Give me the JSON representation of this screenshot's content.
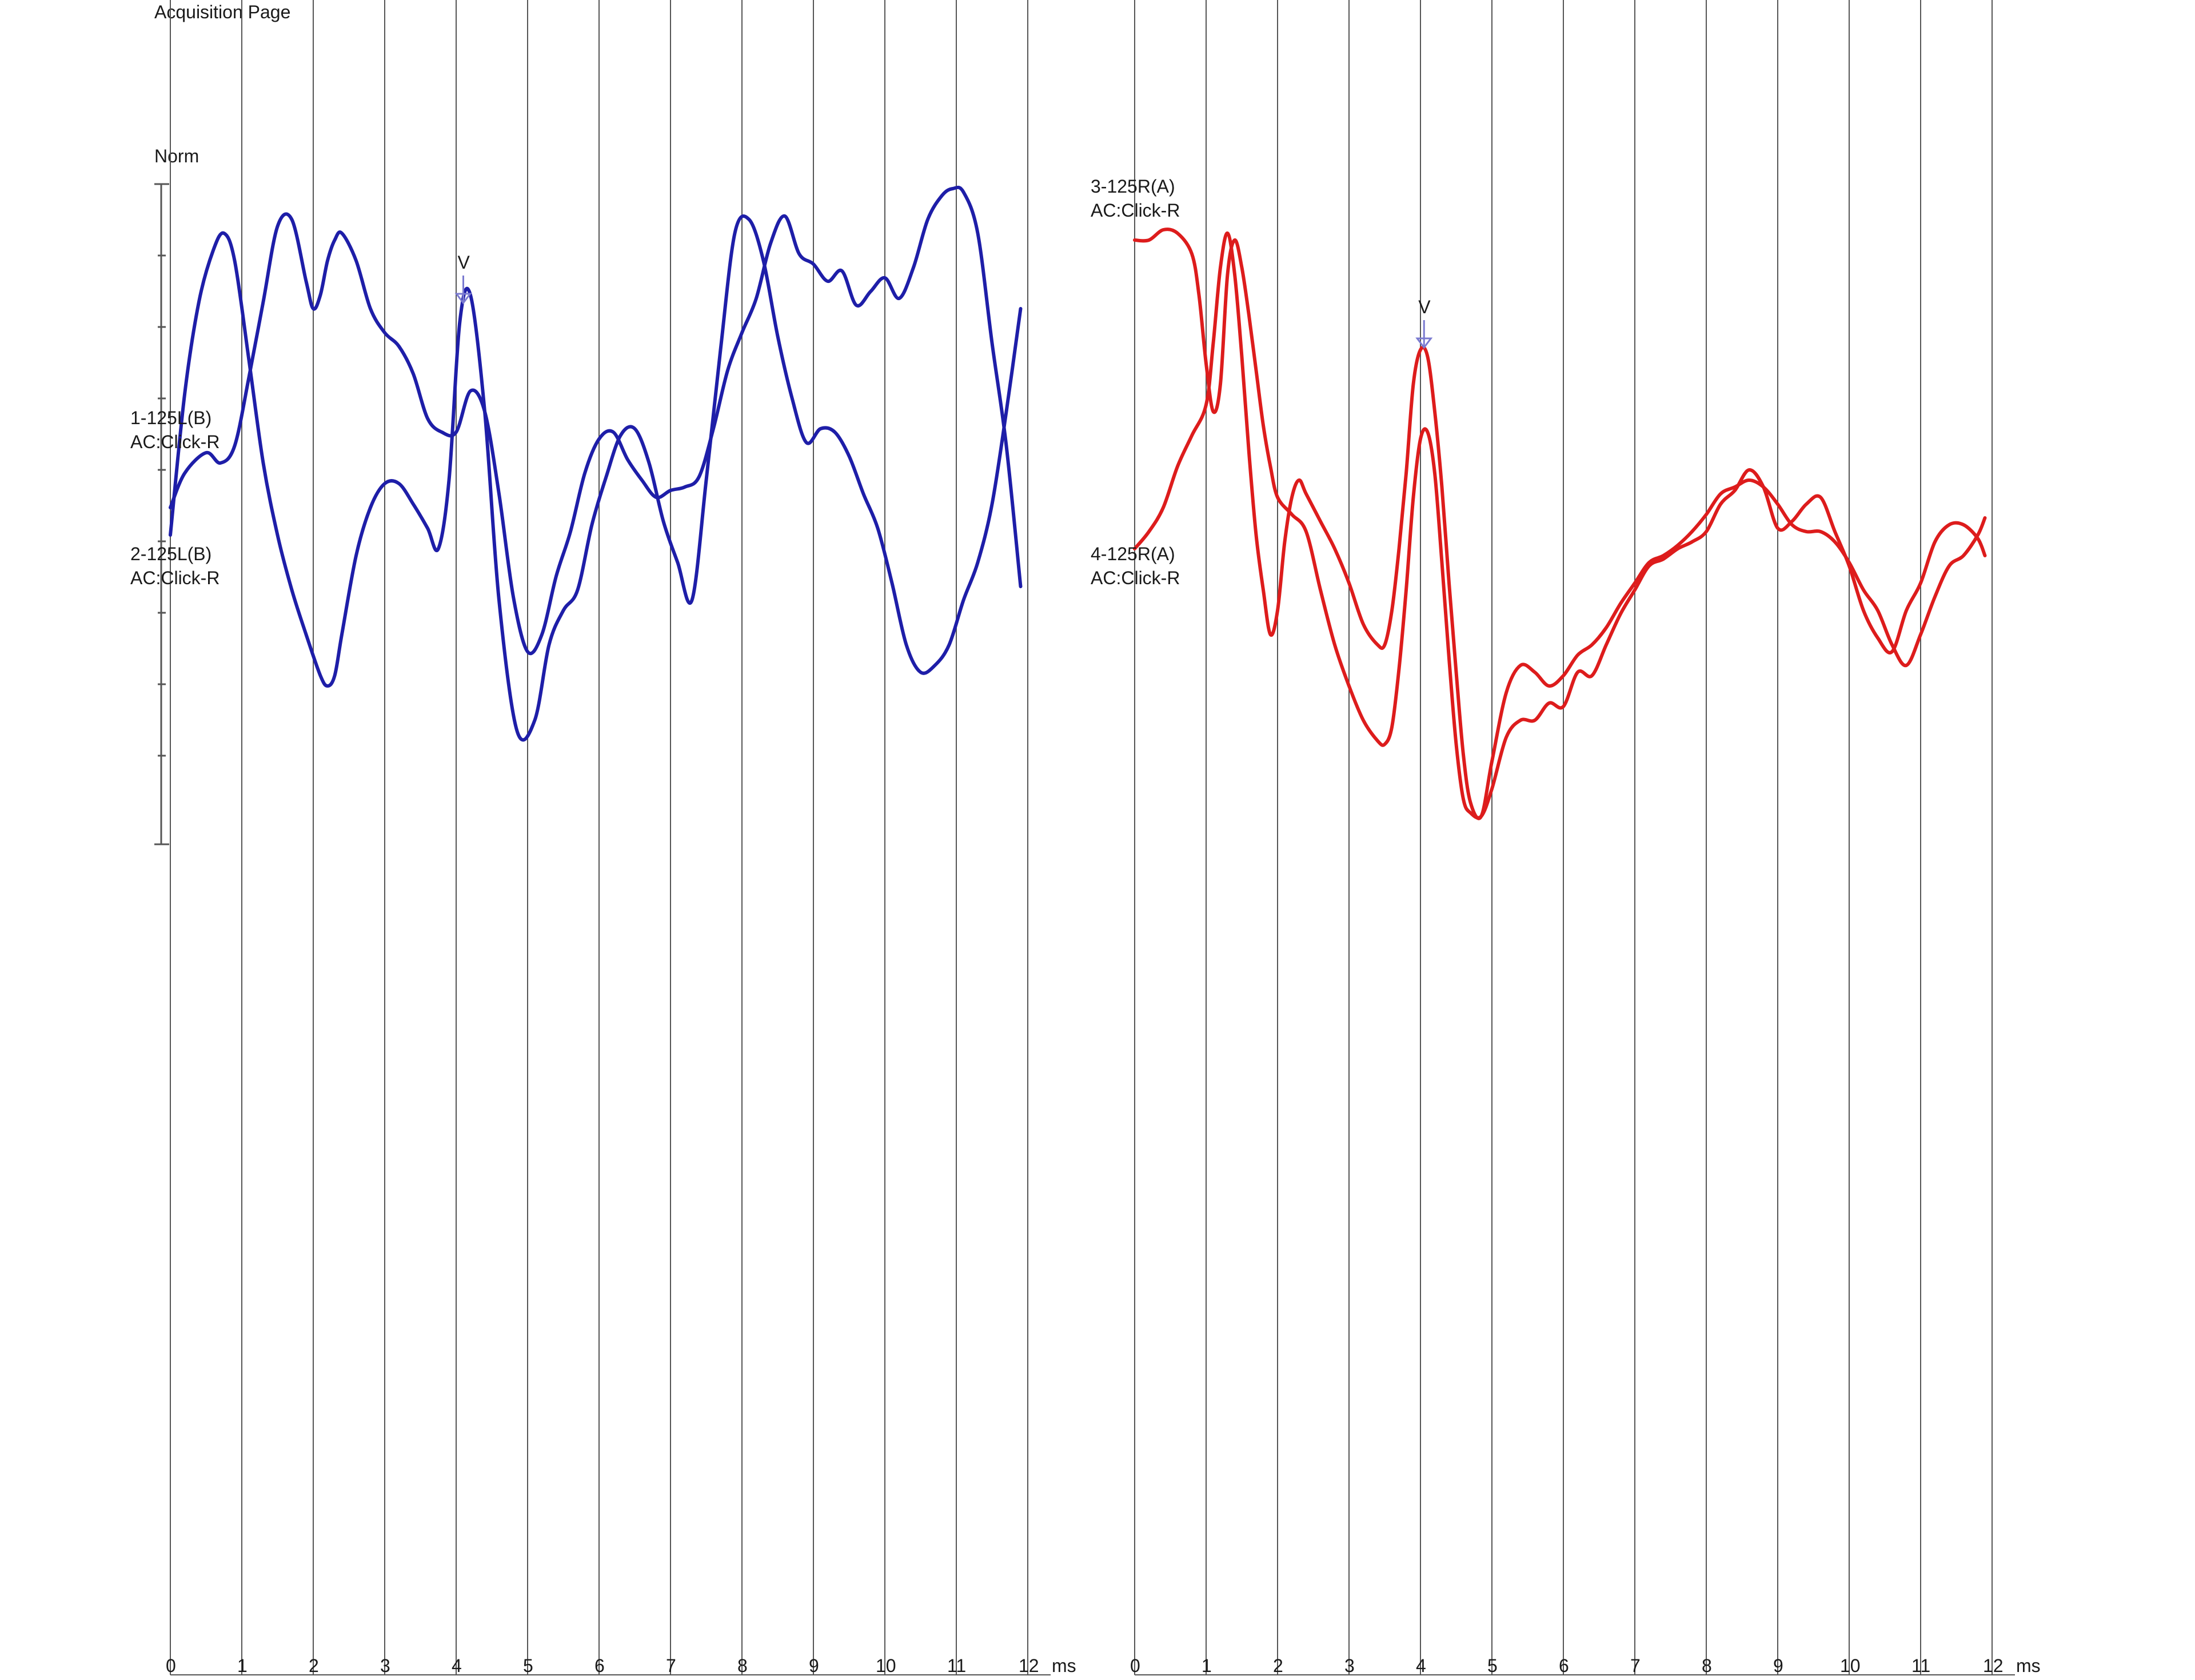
{
  "page": {
    "title": "Acquisition Page",
    "scale_label": "Norm",
    "axis_unit": "ms"
  },
  "colors": {
    "left_ear": "#1e1ea8",
    "right_ear": "#dd1c1c",
    "grid": "#555555",
    "text": "#1a1a1a"
  },
  "chart_data": [
    {
      "type": "line",
      "panel": "left",
      "x_ticks": [
        "0",
        "1",
        "2",
        "3",
        "4",
        "5",
        "6",
        "7",
        "8",
        "9",
        "10",
        "11",
        "12"
      ],
      "xlabel": "ms",
      "xlim": [
        0,
        12
      ],
      "ylim": [
        -1,
        1
      ],
      "grid": "vertical lines at every 1 ms",
      "labels": [
        {
          "line1": "1-125L(B)",
          "line2": "AC:Click-R"
        },
        {
          "line1": "2-125L(B)",
          "line2": "AC:Click-R"
        }
      ],
      "peak_markers": [
        {
          "label": "V",
          "x": 4.1,
          "y": 0.6
        }
      ],
      "series": [
        {
          "color": "#1e1ea8",
          "x": [
            0.0,
            0.2,
            0.4,
            0.6,
            0.75,
            0.9,
            1.1,
            1.3,
            1.5,
            1.7,
            1.9,
            2.1,
            2.2,
            2.3,
            2.4,
            2.6,
            2.8,
            3.0,
            3.2,
            3.4,
            3.6,
            3.75,
            3.9,
            4.05,
            4.2,
            4.4,
            4.6,
            4.85,
            5.1,
            5.3,
            5.5,
            5.7,
            5.9,
            6.1,
            6.3,
            6.5,
            6.7,
            6.9,
            7.1,
            7.3,
            7.5,
            7.7,
            7.9,
            8.1,
            8.3,
            8.5,
            8.7,
            8.9,
            9.1,
            9.3,
            9.5,
            9.7,
            9.9,
            10.1,
            10.3,
            10.5,
            10.7,
            10.9,
            11.1,
            11.3,
            11.5,
            11.7,
            11.9
          ],
          "y": [
            -0.06,
            0.35,
            0.62,
            0.77,
            0.82,
            0.74,
            0.45,
            0.15,
            -0.06,
            -0.22,
            -0.35,
            -0.47,
            -0.5,
            -0.47,
            -0.35,
            -0.12,
            0.02,
            0.09,
            0.09,
            0.03,
            -0.04,
            -0.1,
            0.1,
            0.56,
            0.64,
            0.3,
            -0.25,
            -0.63,
            -0.6,
            -0.38,
            -0.28,
            -0.22,
            -0.03,
            0.11,
            0.23,
            0.25,
            0.15,
            -0.02,
            -0.14,
            -0.25,
            0.1,
            0.48,
            0.82,
            0.86,
            0.74,
            0.52,
            0.34,
            0.21,
            0.25,
            0.24,
            0.17,
            0.06,
            -0.04,
            -0.2,
            -0.38,
            -0.46,
            -0.44,
            -0.38,
            -0.25,
            -0.14,
            0.03,
            0.3,
            0.6
          ]
        },
        {
          "color": "#1e1ea8",
          "x": [
            0.0,
            0.2,
            0.5,
            0.7,
            0.9,
            1.1,
            1.3,
            1.5,
            1.7,
            1.9,
            2.0,
            2.1,
            2.2,
            2.3,
            2.4,
            2.6,
            2.8,
            3.0,
            3.2,
            3.4,
            3.6,
            3.8,
            4.0,
            4.2,
            4.4,
            4.6,
            4.8,
            5.0,
            5.2,
            5.4,
            5.6,
            5.8,
            6.0,
            6.2,
            6.4,
            6.6,
            6.8,
            7.0,
            7.2,
            7.4,
            7.6,
            7.8,
            8.0,
            8.2,
            8.4,
            8.6,
            8.8,
            9.0,
            9.2,
            9.4,
            9.6,
            9.8,
            10.0,
            10.2,
            10.4,
            10.6,
            10.8,
            10.95,
            11.1,
            11.3,
            11.5,
            11.7,
            11.9
          ],
          "y": [
            0.02,
            0.12,
            0.18,
            0.15,
            0.2,
            0.4,
            0.62,
            0.84,
            0.86,
            0.68,
            0.6,
            0.64,
            0.74,
            0.8,
            0.82,
            0.74,
            0.6,
            0.53,
            0.49,
            0.41,
            0.28,
            0.24,
            0.24,
            0.36,
            0.3,
            0.06,
            -0.24,
            -0.4,
            -0.35,
            -0.18,
            -0.05,
            0.12,
            0.22,
            0.24,
            0.16,
            0.1,
            0.05,
            0.07,
            0.08,
            0.11,
            0.25,
            0.42,
            0.53,
            0.63,
            0.79,
            0.87,
            0.76,
            0.73,
            0.68,
            0.71,
            0.61,
            0.65,
            0.69,
            0.63,
            0.72,
            0.86,
            0.93,
            0.95,
            0.94,
            0.82,
            0.5,
            0.2,
            -0.21
          ]
        }
      ]
    },
    {
      "type": "line",
      "panel": "right",
      "x_ticks": [
        "0",
        "1",
        "2",
        "3",
        "4",
        "5",
        "6",
        "7",
        "8",
        "9",
        "10",
        "11",
        "12"
      ],
      "xlabel": "ms",
      "xlim": [
        0,
        12
      ],
      "ylim": [
        -1,
        1
      ],
      "grid": "vertical lines at every 1 ms",
      "labels": [
        {
          "line1": "3-125R(A)",
          "line2": "AC:Click-R"
        },
        {
          "line1": "4-125R(A)",
          "line2": "AC:Click-R"
        }
      ],
      "peak_markers": [
        {
          "label": "V",
          "x": 4.05,
          "y": 0.47
        }
      ],
      "series": [
        {
          "color": "#dd1c1c",
          "x": [
            0.0,
            0.2,
            0.4,
            0.6,
            0.8,
            0.9,
            1.0,
            1.1,
            1.2,
            1.3,
            1.4,
            1.5,
            1.6,
            1.7,
            1.8,
            1.9,
            2.0,
            2.2,
            2.4,
            2.6,
            2.8,
            3.0,
            3.2,
            3.4,
            3.5,
            3.6,
            3.7,
            3.8,
            3.9,
            4.0,
            4.1,
            4.2,
            4.3,
            4.4,
            4.5,
            4.6,
            4.7,
            4.85,
            5.0,
            5.2,
            5.4,
            5.6,
            5.8,
            6.0,
            6.2,
            6.4,
            6.6,
            6.8,
            7.0,
            7.2,
            7.4,
            7.6,
            7.8,
            8.0,
            8.2,
            8.4,
            8.6,
            8.8,
            9.0,
            9.2,
            9.4,
            9.6,
            9.8,
            10.0,
            10.2,
            10.4,
            10.6,
            10.8,
            11.0,
            11.2,
            11.4,
            11.6,
            11.8,
            11.9
          ],
          "y": [
            0.8,
            0.8,
            0.83,
            0.82,
            0.76,
            0.64,
            0.44,
            0.3,
            0.38,
            0.7,
            0.8,
            0.72,
            0.58,
            0.42,
            0.26,
            0.14,
            0.05,
            0.0,
            -0.05,
            -0.22,
            -0.38,
            -0.5,
            -0.6,
            -0.66,
            -0.67,
            -0.62,
            -0.45,
            -0.22,
            0.05,
            0.22,
            0.24,
            0.12,
            -0.14,
            -0.42,
            -0.67,
            -0.83,
            -0.87,
            -0.88,
            -0.8,
            -0.65,
            -0.6,
            -0.6,
            -0.55,
            -0.56,
            -0.46,
            -0.47,
            -0.38,
            -0.29,
            -0.22,
            -0.15,
            -0.13,
            -0.1,
            -0.08,
            -0.05,
            0.03,
            0.07,
            0.13,
            0.08,
            -0.04,
            -0.02,
            0.03,
            0.05,
            -0.05,
            -0.15,
            -0.28,
            -0.36,
            -0.4,
            -0.28,
            -0.2,
            -0.08,
            -0.03,
            -0.03,
            -0.07,
            -0.12
          ]
        },
        {
          "color": "#dd1c1c",
          "x": [
            0.0,
            0.2,
            0.4,
            0.6,
            0.8,
            1.0,
            1.1,
            1.2,
            1.3,
            1.4,
            1.5,
            1.6,
            1.7,
            1.8,
            1.9,
            2.0,
            2.1,
            2.2,
            2.3,
            2.4,
            2.6,
            2.8,
            3.0,
            3.2,
            3.4,
            3.5,
            3.6,
            3.7,
            3.8,
            3.9,
            4.0,
            4.1,
            4.2,
            4.3,
            4.4,
            4.5,
            4.6,
            4.7,
            4.85,
            5.0,
            5.2,
            5.4,
            5.6,
            5.8,
            6.0,
            6.2,
            6.4,
            6.6,
            6.8,
            7.0,
            7.2,
            7.4,
            7.6,
            7.8,
            8.0,
            8.2,
            8.4,
            8.6,
            8.8,
            9.0,
            9.2,
            9.4,
            9.6,
            9.8,
            10.0,
            10.2,
            10.4,
            10.6,
            10.8,
            11.0,
            11.2,
            11.4,
            11.6,
            11.8,
            11.9
          ],
          "y": [
            -0.1,
            -0.05,
            0.02,
            0.14,
            0.23,
            0.32,
            0.5,
            0.72,
            0.82,
            0.7,
            0.46,
            0.18,
            -0.06,
            -0.22,
            -0.35,
            -0.28,
            -0.08,
            0.05,
            0.1,
            0.06,
            -0.02,
            -0.1,
            -0.2,
            -0.32,
            -0.38,
            -0.38,
            -0.28,
            -0.1,
            0.12,
            0.38,
            0.48,
            0.46,
            0.3,
            0.08,
            -0.2,
            -0.46,
            -0.7,
            -0.84,
            -0.88,
            -0.72,
            -0.52,
            -0.44,
            -0.46,
            -0.5,
            -0.47,
            -0.41,
            -0.38,
            -0.33,
            -0.26,
            -0.2,
            -0.14,
            -0.12,
            -0.09,
            -0.05,
            0.0,
            0.06,
            0.08,
            0.1,
            0.08,
            0.03,
            -0.03,
            -0.05,
            -0.05,
            -0.08,
            -0.14,
            -0.22,
            -0.28,
            -0.38,
            -0.44,
            -0.35,
            -0.24,
            -0.15,
            -0.12,
            -0.06,
            -0.01
          ]
        }
      ]
    }
  ]
}
